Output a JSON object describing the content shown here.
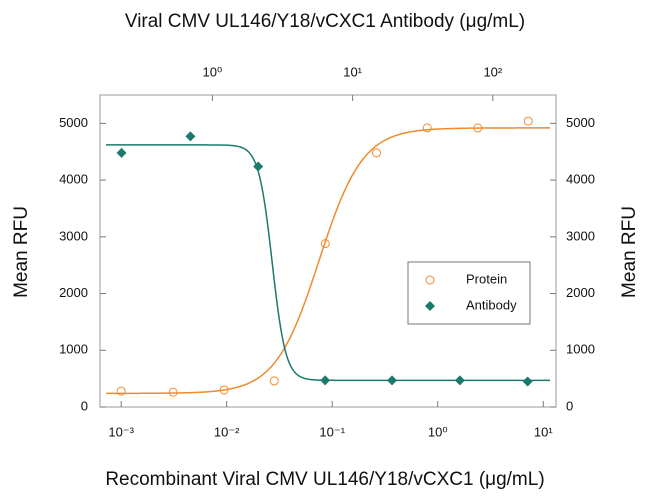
{
  "chart_data": {
    "type": "scatter",
    "title": "Viral CMV UL146/Y18/vCXC1 Antibody (μg/mL)",
    "x_label": "Recombinant Viral CMV UL146/Y18/vCXC1 (μg/mL)",
    "y_label": "Mean RFU",
    "y2_label": "Mean RFU",
    "log_x": true,
    "xlim": [
      0.00063,
      13.2
    ],
    "xticks": [
      {
        "value": 0.001,
        "label": "10⁻³"
      },
      {
        "value": 0.01,
        "label": "10⁻²"
      },
      {
        "value": 0.1,
        "label": "10⁻¹"
      },
      {
        "value": 1,
        "label": "10⁰"
      },
      {
        "value": 10,
        "label": "10¹"
      }
    ],
    "x2lim": [
      0.158,
      282
    ],
    "x2ticks": [
      {
        "value": 1,
        "label": "10⁰"
      },
      {
        "value": 10,
        "label": "10¹"
      },
      {
        "value": 100,
        "label": "10²"
      }
    ],
    "ylim": [
      0,
      5500
    ],
    "yticks": [
      0,
      1000,
      2000,
      3000,
      4000,
      5000
    ],
    "y2lim": [
      0,
      5500
    ],
    "y2ticks": [
      0,
      1000,
      2000,
      3000,
      4000,
      5000
    ],
    "legend_position": "center right",
    "series": [
      {
        "name": "Protein",
        "color": "#f08a2c",
        "marker": "open-circle",
        "axis": "x",
        "x": [
          0.001,
          0.00311,
          0.00946,
          0.0282,
          0.0859,
          0.263,
          0.795,
          2.4,
          7.2
        ],
        "values": [
          280,
          260,
          300,
          460,
          2880,
          4480,
          4920,
          4920,
          5040
        ],
        "fit": {
          "bottom": 240,
          "top": 4920,
          "ec50": 0.075,
          "hill": 2.1
        }
      },
      {
        "name": "Antibody",
        "color": "#1b7a6d",
        "marker": "diamond",
        "axis": "x2",
        "x": [
          0.225,
          0.697,
          2.12,
          6.37,
          19.1,
          58.2,
          177
        ],
        "values": [
          4480,
          4770,
          4240,
          470,
          470,
          470,
          450
        ],
        "fit": {
          "bottom": 470,
          "top": 4620,
          "ec50": 2.67,
          "hill": 9
        }
      }
    ]
  }
}
